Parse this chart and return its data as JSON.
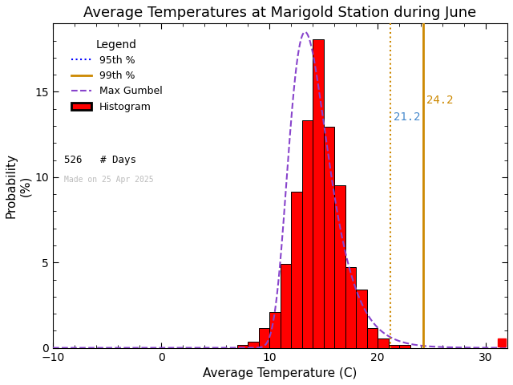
{
  "title": "Average Temperatures at Marigold Station during June",
  "xlabel": "Average Temperature (C)",
  "ylabel": "Probability\n(%)",
  "xlim": [
    -10,
    32
  ],
  "ylim": [
    0,
    19
  ],
  "xticks": [
    -10,
    0,
    10,
    20,
    30
  ],
  "yticks": [
    0,
    5,
    10,
    15
  ],
  "bar_edges": [
    7,
    8,
    9,
    10,
    11,
    12,
    13,
    14,
    15,
    16,
    17,
    18,
    19,
    20,
    21,
    22
  ],
  "bar_heights": [
    0.19,
    0.38,
    1.14,
    2.09,
    4.94,
    9.13,
    13.31,
    18.06,
    12.93,
    9.51,
    4.75,
    3.42,
    1.14,
    0.57,
    0.19,
    0.19
  ],
  "bar_color": "#ff0000",
  "bar_edgecolor": "#000000",
  "gumbel_color": "#8844cc",
  "gumbel_linestyle": "--",
  "p95_value": 21.2,
  "p99_value": 24.2,
  "p95_color": "#cc8800",
  "p99_color": "#cc8800",
  "p95_linestyle": ":",
  "p99_linestyle": "-",
  "p95_label": "21.2",
  "p99_label": "24.2",
  "p95_label_color": "#4488cc",
  "p99_label_color": "#cc8800",
  "n_days": 526,
  "watermark": "Made on 25 Apr 2025",
  "watermark_color": "#bbbbbb",
  "background_color": "#ffffff",
  "legend_title": "Legend",
  "legend_95_color": "#0000ff",
  "legend_95_linestyle": ":",
  "legend_99_color": "#cc8800",
  "legend_99_linestyle": "-",
  "title_fontsize": 13,
  "axis_fontsize": 11,
  "tick_fontsize": 10,
  "gumbel_mu": 13.3,
  "gumbel_beta": 1.8,
  "gumbel_scale": 18.5
}
